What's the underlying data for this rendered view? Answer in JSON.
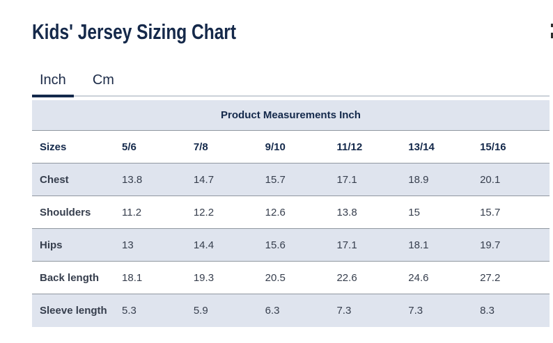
{
  "page": {
    "title": "Kids' Jersey Sizing Chart"
  },
  "tabs": {
    "inch": {
      "label": "Inch",
      "active": true
    },
    "cm": {
      "label": "Cm",
      "active": false
    }
  },
  "table": {
    "header": "Product Measurements Inch",
    "columns": [
      "Sizes",
      "5/6",
      "7/8",
      "9/10",
      "11/12",
      "13/14",
      "15/16"
    ],
    "rows": [
      {
        "label": "Chest",
        "values": [
          "13.8",
          "14.7",
          "15.7",
          "17.1",
          "18.9",
          "20.1"
        ]
      },
      {
        "label": "Shoulders",
        "values": [
          "11.2",
          "12.2",
          "12.6",
          "13.8",
          "15",
          "15.7"
        ]
      },
      {
        "label": "Hips",
        "values": [
          "13",
          "14.4",
          "15.6",
          "17.1",
          "18.1",
          "19.7"
        ]
      },
      {
        "label": "Back length",
        "values": [
          "18.1",
          "19.3",
          "20.5",
          "22.6",
          "24.6",
          "27.2"
        ]
      },
      {
        "label": "Sleeve length",
        "values": [
          "5.3",
          "5.9",
          "6.3",
          "7.3",
          "7.3",
          "8.3"
        ]
      }
    ]
  },
  "colors": {
    "title_navy": "#15294a",
    "label_navy": "#14294b",
    "value_text": "#363e4d",
    "shaded_row_bg": "#dfe4ee",
    "row_border": "#8f969f",
    "tab_underline_active": "#14294b",
    "tab_underline_track": "#cbd1d9",
    "page_bg": "#ffffff"
  }
}
